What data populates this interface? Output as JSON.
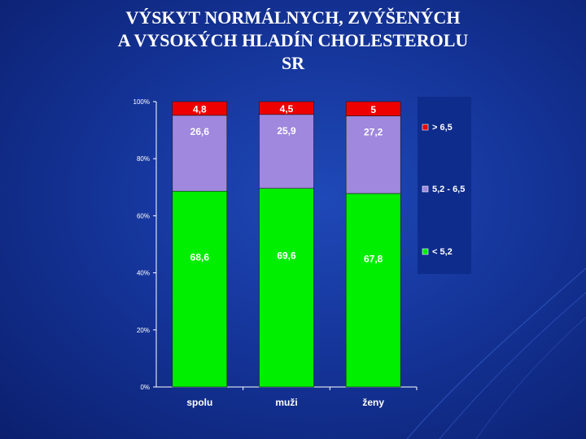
{
  "slide": {
    "title_lines": [
      "VÝSKYT NORMÁLNYCH, ZVÝŠENÝCH",
      "A VYSOKÝCH HLADÍN CHOLESTEROLU",
      "SR"
    ]
  },
  "chart_data": {
    "type": "bar",
    "stacked": true,
    "percent_stacked": true,
    "categories": [
      "spolu",
      "muži",
      "ženy"
    ],
    "series": [
      {
        "name": "< 5,2",
        "color": "#00ee00",
        "values": [
          68.6,
          69.6,
          67.8
        ],
        "labels": [
          "68,6",
          "69,6",
          "67,8"
        ]
      },
      {
        "name": "5,2 - 6,5",
        "color": "#9f88dd",
        "values": [
          26.6,
          25.9,
          27.2
        ],
        "labels": [
          "26,6",
          "25,9",
          "27,2"
        ]
      },
      {
        "name": "> 6,5",
        "color": "#ee0000",
        "values": [
          4.8,
          4.5,
          5
        ],
        "labels": [
          "4,8",
          "4,5",
          "5"
        ]
      }
    ],
    "yticks": [
      "0%",
      "20%",
      "40%",
      "60%",
      "80%",
      "100%"
    ],
    "ylim": [
      0,
      100
    ],
    "legend_position": "right",
    "grid": false
  }
}
